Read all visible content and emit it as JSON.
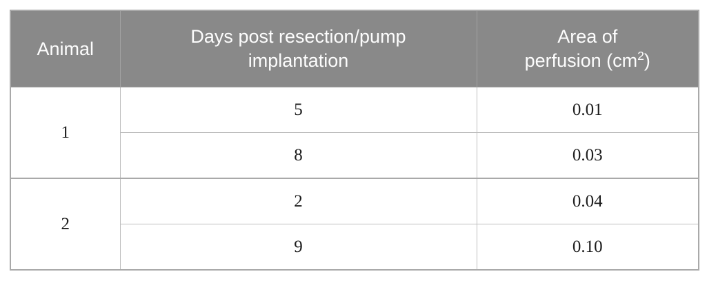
{
  "colors": {
    "header_background": "#898989",
    "header_text": "#fdfdfd",
    "body_text": "#1c1c1c",
    "border_light": "#bdbdbd",
    "border_dark": "#a9a9a9",
    "page_background": "#ffffff"
  },
  "table": {
    "header": {
      "animal": "Animal",
      "days_line1": "Days post resection/pump",
      "days_line2": "implantation",
      "area_line1": "Area of",
      "area_line2_prefix": "perfusion (cm",
      "area_sup": "2",
      "area_suffix": ")"
    },
    "groups": [
      {
        "animal": "1",
        "entries": [
          {
            "days": "5",
            "area": "0.01"
          },
          {
            "days": "8",
            "area": "0.03"
          }
        ]
      },
      {
        "animal": "2",
        "entries": [
          {
            "days": "2",
            "area": "0.04"
          },
          {
            "days": "9",
            "area": "0.10"
          }
        ]
      }
    ]
  },
  "chart_data": {
    "type": "table",
    "columns": [
      "Animal",
      "Days post resection/pump implantation",
      "Area of perfusion (cm²)"
    ],
    "rows": [
      [
        "1",
        "5",
        "0.01"
      ],
      [
        "1",
        "8",
        "0.03"
      ],
      [
        "2",
        "2",
        "0.04"
      ],
      [
        "2",
        "9",
        "0.10"
      ]
    ]
  }
}
